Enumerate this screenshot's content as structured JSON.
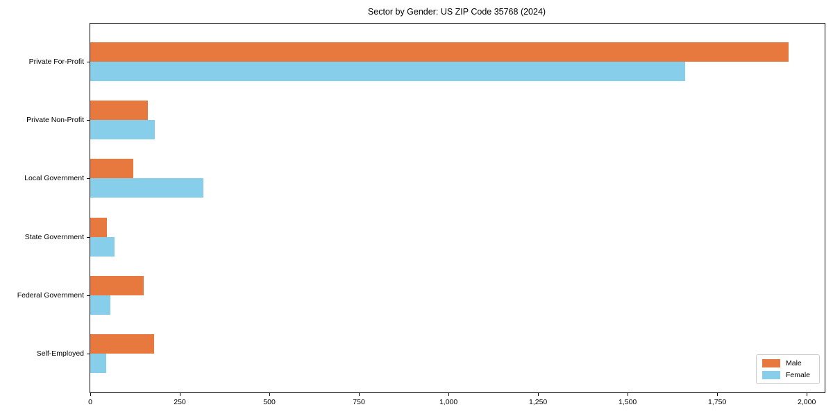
{
  "chart_data": {
    "type": "bar",
    "orientation": "horizontal",
    "title": "Sector by Gender: US ZIP Code 35768 (2024)",
    "categories": [
      "Private For-Profit",
      "Private Non-Profit",
      "Local Government",
      "State Government",
      "Federal Government",
      "Self-Employed"
    ],
    "series": [
      {
        "name": "Male",
        "color": "#e8793e",
        "values": [
          1950,
          160,
          120,
          46,
          150,
          178
        ]
      },
      {
        "name": "Female",
        "color": "#87ceeb",
        "values": [
          1660,
          180,
          315,
          67,
          57,
          45
        ]
      }
    ],
    "xlabel": "",
    "ylabel": "",
    "xlim": [
      0,
      2050
    ],
    "xticks": [
      0,
      250,
      500,
      750,
      1000,
      1250,
      1500,
      1750,
      2000
    ],
    "xtick_labels": [
      "0",
      "250",
      "500",
      "750",
      "1,000",
      "1,250",
      "1,500",
      "1,750",
      "2,000"
    ],
    "grid": false,
    "legend_position": "lower right"
  },
  "legend": {
    "items": [
      {
        "label": "Male",
        "color": "#e8793e"
      },
      {
        "label": "Female",
        "color": "#87ceeb"
      }
    ]
  }
}
